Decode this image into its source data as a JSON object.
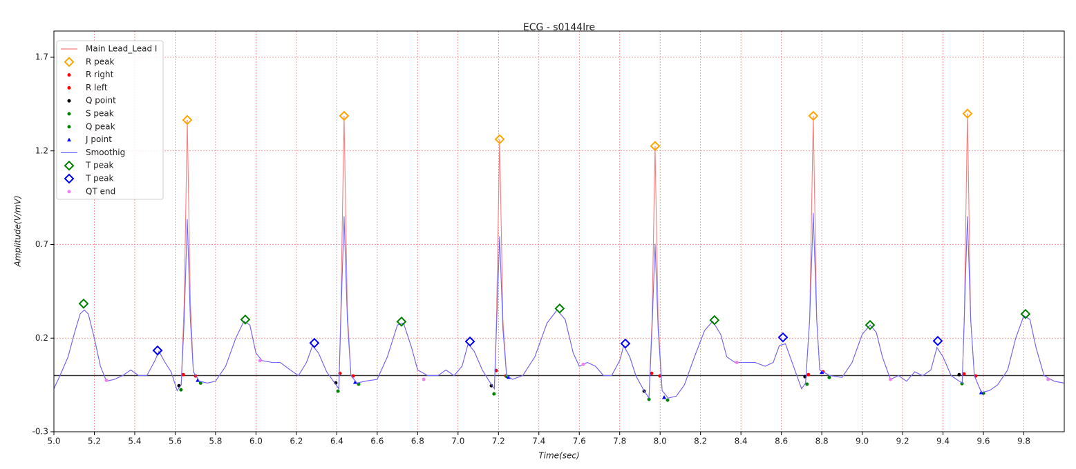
{
  "chart_data": {
    "type": "line",
    "title": "ECG - s0144lre",
    "x_label": "Time(sec)",
    "y_label": "Amplitude(V/mV)",
    "xlim": [
      5.0,
      10.0
    ],
    "ylim": [
      -0.3,
      1.84
    ],
    "xticks": [
      {
        "value": 5.0,
        "label": "5.0"
      },
      {
        "value": 5.2,
        "label": "5.2"
      },
      {
        "value": 5.4,
        "label": "5.4"
      },
      {
        "value": 5.6,
        "label": "5.6"
      },
      {
        "value": 5.8,
        "label": "5.8"
      },
      {
        "value": 6.0,
        "label": "6.0"
      },
      {
        "value": 6.2,
        "label": "6.2"
      },
      {
        "value": 6.4,
        "label": "6.4"
      },
      {
        "value": 6.6,
        "label": "6.6"
      },
      {
        "value": 6.8,
        "label": "6.8"
      },
      {
        "value": 7.0,
        "label": "7.0"
      },
      {
        "value": 7.2,
        "label": "7.2"
      },
      {
        "value": 7.4,
        "label": "7.4"
      },
      {
        "value": 7.6,
        "label": "7.6"
      },
      {
        "value": 7.8,
        "label": "7.8"
      },
      {
        "value": 8.0,
        "label": "8.0"
      },
      {
        "value": 8.2,
        "label": "8.2"
      },
      {
        "value": 8.4,
        "label": "8.4"
      },
      {
        "value": 8.6,
        "label": "8.6"
      },
      {
        "value": 8.8,
        "label": "8.8"
      },
      {
        "value": 9.0,
        "label": "9.0"
      },
      {
        "value": 9.2,
        "label": "9.2"
      },
      {
        "value": 9.4,
        "label": "9.4"
      },
      {
        "value": 9.6,
        "label": "9.6"
      },
      {
        "value": 9.8,
        "label": "9.8"
      }
    ],
    "yticks": [
      -0.3,
      0.2,
      0.7,
      1.2,
      1.7
    ],
    "grid": true,
    "legend": "upper left",
    "axhline": 0,
    "x": [
      5.0,
      5.03,
      5.07,
      5.1,
      5.13,
      5.15,
      5.17,
      5.2,
      5.23,
      5.26,
      5.3,
      5.34,
      5.38,
      5.42,
      5.46,
      5.5,
      5.52,
      5.55,
      5.58,
      5.61,
      5.63,
      5.645,
      5.66,
      5.675,
      5.69,
      5.72,
      5.76,
      5.8,
      5.85,
      5.9,
      5.94,
      5.97,
      6.0,
      6.03,
      6.08,
      6.12,
      6.17,
      6.21,
      6.25,
      6.28,
      6.31,
      6.35,
      6.39,
      6.41,
      6.42,
      6.436,
      6.452,
      6.47,
      6.5,
      6.54,
      6.6,
      6.65,
      6.7,
      6.73,
      6.77,
      6.8,
      6.85,
      6.9,
      6.94,
      6.98,
      7.02,
      7.05,
      7.08,
      7.12,
      7.16,
      7.18,
      7.19,
      7.206,
      7.222,
      7.24,
      7.27,
      7.32,
      7.38,
      7.44,
      7.49,
      7.53,
      7.57,
      7.6,
      7.64,
      7.68,
      7.72,
      7.76,
      7.8,
      7.82,
      7.85,
      7.88,
      7.92,
      7.945,
      7.96,
      7.975,
      7.99,
      8.01,
      8.04,
      8.08,
      8.12,
      8.17,
      8.22,
      8.26,
      8.3,
      8.33,
      8.37,
      8.42,
      8.47,
      8.52,
      8.56,
      8.59,
      8.62,
      8.66,
      8.7,
      8.72,
      8.74,
      8.758,
      8.775,
      8.79,
      8.84,
      8.9,
      8.95,
      9.0,
      9.04,
      9.07,
      9.1,
      9.14,
      9.18,
      9.22,
      9.26,
      9.3,
      9.34,
      9.37,
      9.4,
      9.44,
      9.48,
      9.495,
      9.505,
      9.521,
      9.537,
      9.555,
      9.59,
      9.63,
      9.67,
      9.72,
      9.76,
      9.8,
      9.83,
      9.86,
      9.9,
      9.95,
      10.0
    ],
    "series": [
      {
        "name": "Main Lead_Lead I",
        "kind": "line",
        "color": "#f47f7f",
        "values": [
          -0.07,
          0.0,
          0.1,
          0.22,
          0.33,
          0.35,
          0.33,
          0.2,
          0.05,
          -0.03,
          -0.02,
          0.0,
          0.03,
          0.0,
          0.0,
          0.08,
          0.13,
          0.07,
          0.02,
          -0.08,
          -0.05,
          0.4,
          1.365,
          0.4,
          0.02,
          -0.03,
          -0.04,
          -0.03,
          0.05,
          0.2,
          0.29,
          0.27,
          0.12,
          0.08,
          0.07,
          0.07,
          0.03,
          0.0,
          0.07,
          0.16,
          0.12,
          0.02,
          -0.04,
          -0.07,
          0.35,
          1.387,
          0.35,
          0.0,
          -0.04,
          -0.03,
          -0.02,
          0.1,
          0.27,
          0.28,
          0.15,
          0.03,
          0.0,
          0.0,
          0.03,
          0.0,
          0.05,
          0.17,
          0.13,
          0.03,
          -0.04,
          -0.07,
          0.3,
          1.262,
          0.3,
          0.0,
          -0.02,
          0.0,
          0.1,
          0.28,
          0.35,
          0.3,
          0.12,
          0.05,
          0.07,
          0.05,
          0.0,
          0.0,
          0.08,
          0.16,
          0.1,
          0.0,
          -0.08,
          -0.12,
          0.3,
          1.226,
          0.3,
          -0.08,
          -0.12,
          -0.11,
          -0.05,
          0.1,
          0.24,
          0.29,
          0.22,
          0.1,
          0.07,
          0.07,
          0.07,
          0.05,
          0.07,
          0.16,
          0.17,
          0.05,
          -0.07,
          -0.04,
          0.3,
          1.387,
          0.3,
          0.03,
          0.0,
          -0.01,
          0.07,
          0.22,
          0.27,
          0.23,
          0.1,
          -0.02,
          0.0,
          -0.03,
          0.02,
          0.0,
          0.03,
          0.15,
          0.1,
          0.0,
          -0.03,
          -0.04,
          0.3,
          1.399,
          0.3,
          0.0,
          -0.09,
          -0.08,
          -0.05,
          0.03,
          0.2,
          0.32,
          0.3,
          0.15,
          0.0,
          -0.03,
          -0.04
        ]
      },
      {
        "name": "R peak",
        "kind": "scatter",
        "marker": "diamond",
        "color": "#ffa500",
        "x": [
          5.66,
          6.436,
          7.206,
          7.975,
          8.758,
          9.521
        ],
        "values": [
          1.365,
          1.387,
          1.262,
          1.226,
          1.387,
          1.399
        ]
      },
      {
        "name": "R right",
        "kind": "scatter",
        "marker": "dot",
        "color": "#ff0000",
        "x": [
          5.701,
          6.481,
          7.237,
          7.999,
          8.806,
          9.562
        ],
        "values": [
          -0.002,
          -0.002,
          -0.002,
          -0.002,
          0.02,
          -0.002
        ]
      },
      {
        "name": "R left",
        "kind": "scatter",
        "marker": "dot",
        "color": "#ff0000",
        "x": [
          5.64,
          6.416,
          7.189,
          7.958,
          8.734,
          9.504
        ],
        "values": [
          0.005,
          0.012,
          0.027,
          0.012,
          0.005,
          0.009
        ]
      },
      {
        "name": "Q point",
        "kind": "scatter",
        "marker": "dot",
        "color": "#000000",
        "x": [
          5.619,
          6.395,
          7.165,
          7.921,
          8.717,
          9.48
        ],
        "values": [
          -0.054,
          -0.039,
          -0.054,
          -0.083,
          -0.006,
          0.005
        ]
      },
      {
        "name": "S peak",
        "kind": "scatter",
        "marker": "dot",
        "color": "#008000",
        "x": [
          5.726,
          6.508,
          7.24,
          8.037,
          8.837,
          9.6
        ],
        "values": [
          -0.04,
          -0.046,
          -0.004,
          -0.131,
          -0.01,
          -0.094
        ]
      },
      {
        "name": "Q peak",
        "kind": "scatter",
        "marker": "dot",
        "color": "#008000",
        "x": [
          5.629,
          6.406,
          7.178,
          7.945,
          8.727,
          9.494
        ],
        "values": [
          -0.076,
          -0.083,
          -0.098,
          -0.127,
          -0.046,
          -0.043
        ]
      },
      {
        "name": "J point",
        "kind": "scatter",
        "marker": "triangle",
        "color": "#0000ff",
        "x": [
          5.712,
          6.491,
          7.25,
          8.02,
          8.8,
          9.589
        ],
        "values": [
          -0.024,
          -0.035,
          -0.008,
          -0.116,
          0.018,
          -0.09
        ]
      },
      {
        "name": "Smoothig",
        "kind": "line",
        "color": "#6b6bff",
        "values": [
          -0.07,
          0.0,
          0.1,
          0.22,
          0.33,
          0.35,
          0.33,
          0.2,
          0.05,
          -0.03,
          -0.02,
          0.0,
          0.03,
          0.0,
          0.0,
          0.08,
          0.13,
          0.07,
          0.02,
          -0.08,
          -0.05,
          0.3,
          0.836,
          0.3,
          0.02,
          -0.03,
          -0.04,
          -0.03,
          0.05,
          0.2,
          0.29,
          0.27,
          0.12,
          0.08,
          0.07,
          0.07,
          0.03,
          0.0,
          0.07,
          0.16,
          0.12,
          0.02,
          -0.04,
          -0.07,
          0.3,
          0.851,
          0.3,
          0.0,
          -0.04,
          -0.03,
          -0.02,
          0.1,
          0.27,
          0.28,
          0.15,
          0.03,
          0.0,
          0.0,
          0.03,
          0.0,
          0.05,
          0.17,
          0.13,
          0.03,
          -0.04,
          -0.07,
          0.25,
          0.744,
          0.25,
          0.0,
          -0.02,
          0.0,
          0.1,
          0.28,
          0.35,
          0.3,
          0.12,
          0.05,
          0.07,
          0.05,
          0.0,
          0.0,
          0.08,
          0.16,
          0.1,
          0.0,
          -0.08,
          -0.12,
          0.25,
          0.704,
          0.25,
          -0.08,
          -0.12,
          -0.11,
          -0.05,
          0.1,
          0.24,
          0.29,
          0.22,
          0.1,
          0.07,
          0.07,
          0.07,
          0.05,
          0.07,
          0.16,
          0.17,
          0.05,
          -0.07,
          -0.04,
          0.3,
          0.869,
          0.3,
          0.03,
          0.0,
          -0.01,
          0.07,
          0.22,
          0.27,
          0.23,
          0.1,
          -0.02,
          0.0,
          -0.03,
          0.02,
          0.0,
          0.03,
          0.15,
          0.1,
          0.0,
          -0.03,
          -0.04,
          0.3,
          0.851,
          0.3,
          0.0,
          -0.09,
          -0.08,
          -0.05,
          0.03,
          0.2,
          0.32,
          0.3,
          0.15,
          0.0,
          -0.03,
          -0.04
        ]
      },
      {
        "name": "T peak",
        "kind": "scatter",
        "marker": "diamond",
        "color": "#008000",
        "x": [
          5.147,
          5.947,
          6.72,
          7.503,
          8.269,
          9.039,
          9.808
        ],
        "values": [
          0.384,
          0.299,
          0.288,
          0.358,
          0.296,
          0.27,
          0.329
        ]
      },
      {
        "name": "T peak",
        "kind": "scatter",
        "marker": "diamond",
        "color": "#0000ff",
        "x": [
          5.513,
          6.289,
          7.059,
          7.828,
          8.608,
          9.374
        ],
        "values": [
          0.134,
          0.174,
          0.182,
          0.171,
          0.204,
          0.185
        ]
      },
      {
        "name": "QT end",
        "kind": "scatter",
        "marker": "dot",
        "color": "#ee82ee",
        "x": [
          5.26,
          6.02,
          6.83,
          7.62,
          8.38,
          9.14,
          9.92
        ],
        "values": [
          -0.025,
          0.08,
          -0.02,
          0.06,
          0.07,
          -0.02,
          -0.02
        ]
      }
    ]
  }
}
